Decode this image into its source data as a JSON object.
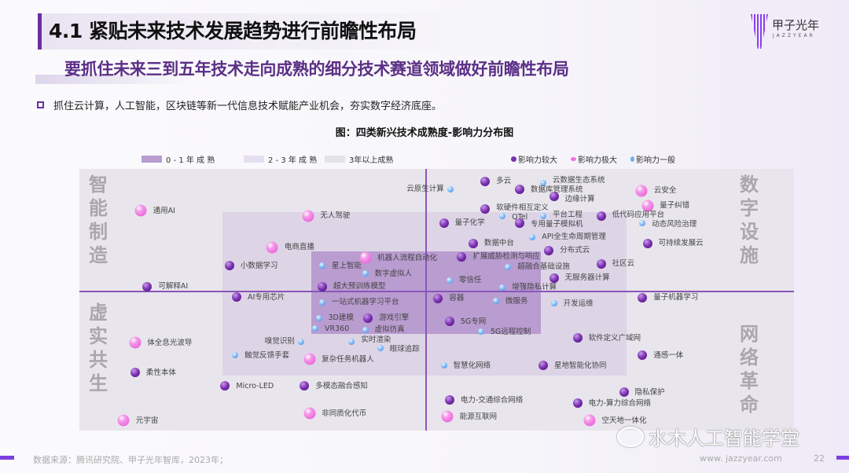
{
  "header": {
    "title": "4.1 紧贴未来技术发展趋势进行前瞻性布局",
    "subtitle": "要抓住未来三到五年技术走向成熟的细分技术赛道领域做好前瞻性布局",
    "bullet": "抓住云计算，人工智能，区块链等新一代信息技术赋能产业机会，夯实数字经济底座。",
    "logo_text": "甲子光年",
    "logo_sub": "JAZZYEAR"
  },
  "footer": {
    "source": "数据来源：腾讯研究院、甲子光年智库，2023年；",
    "url": "www. jazzyear.com",
    "page": "22",
    "watermark": "水木人工智能学堂"
  },
  "colors": {
    "accent": "#6a2fa0",
    "large": "#7a2fb0",
    "extreme": "#f070e0",
    "general": "#6fb0f5",
    "mature_0_1": "#b99cd0",
    "mature_2_3": "#ddd5e6",
    "mature_3plus": "#e8e6ec"
  },
  "chart_data": {
    "type": "scatter",
    "title": "图：四类新兴技术成熟度-影响力分布图",
    "xlim": [
      0,
      100
    ],
    "ylim": [
      0,
      100
    ],
    "legend_regions": [
      "0 - 1 年 成 熟",
      "2 - 3 年 成 熟",
      "3年以上成熟"
    ],
    "legend_impact": {
      "large": "影响力较大",
      "extreme": "影响力极大",
      "general": "影响力一般"
    },
    "quadrants": {
      "top_left": "智能制造",
      "bottom_left": "虚实共生",
      "top_right": "数字设施",
      "bottom_right": "网络革命"
    },
    "points": [
      {
        "name": "通用AI",
        "x": 8.6,
        "y": 84,
        "impact": "extreme"
      },
      {
        "name": "无人驾驶",
        "x": 32,
        "y": 82,
        "impact": "extreme"
      },
      {
        "name": "电商直播",
        "x": 27,
        "y": 70,
        "impact": "extreme"
      },
      {
        "name": "小数据学习",
        "x": 21,
        "y": 63,
        "impact": "large"
      },
      {
        "name": "可解释AI",
        "x": 9.5,
        "y": 55,
        "impact": "large"
      },
      {
        "name": "机器人流程自动化",
        "x": 40,
        "y": 66,
        "impact": "extreme"
      },
      {
        "name": "星上智能",
        "x": 34,
        "y": 63,
        "impact": "general"
      },
      {
        "name": "数字虚拟人",
        "x": 40,
        "y": 60,
        "impact": "general"
      },
      {
        "name": "超大预训练模型",
        "x": 34,
        "y": 55,
        "impact": "large"
      },
      {
        "name": "AI专用芯片",
        "x": 22,
        "y": 51,
        "impact": "large"
      },
      {
        "name": "一站式机器学习平台",
        "x": 34,
        "y": 49,
        "impact": "general"
      },
      {
        "name": "3D建模",
        "x": 33.5,
        "y": 43,
        "impact": "general"
      },
      {
        "name": "游戏引擎",
        "x": 40.4,
        "y": 43,
        "impact": "large"
      },
      {
        "name": "VR360",
        "x": 33,
        "y": 39,
        "impact": "general"
      },
      {
        "name": "虚拟仿真",
        "x": 40,
        "y": 38.5,
        "impact": "general"
      },
      {
        "name": "嗅觉识别",
        "x": 31,
        "y": 34,
        "impact": "general",
        "label_side": "left"
      },
      {
        "name": "实时渲染",
        "x": 38.1,
        "y": 34,
        "impact": "general"
      },
      {
        "name": "眼球追踪",
        "x": 42.1,
        "y": 31.5,
        "impact": "general"
      },
      {
        "name": "触觉反馈手套",
        "x": 21.8,
        "y": 28.8,
        "impact": "general"
      },
      {
        "name": "复杂任务机器人",
        "x": 32.2,
        "y": 27.3,
        "impact": "extreme"
      },
      {
        "name": "体全息光波导",
        "x": 7.8,
        "y": 33.6,
        "impact": "extreme"
      },
      {
        "name": "柔性本体",
        "x": 7.8,
        "y": 22.2,
        "impact": "large"
      },
      {
        "name": "Micro-LED",
        "x": 20.4,
        "y": 17.1,
        "impact": "large"
      },
      {
        "name": "多模态融合感知",
        "x": 31.5,
        "y": 17.1,
        "impact": "large"
      },
      {
        "name": "非同质化代币",
        "x": 32.2,
        "y": 6.6,
        "impact": "extreme"
      },
      {
        "name": "元宇宙",
        "x": 6.2,
        "y": 3.9,
        "impact": "extreme"
      },
      {
        "name": "云原生计算",
        "x": 51.9,
        "y": 92.2,
        "impact": "general",
        "label_side": "left"
      },
      {
        "name": "多云",
        "x": 56.8,
        "y": 95.2,
        "impact": "large"
      },
      {
        "name": "云数据生态系统",
        "x": 64.9,
        "y": 94.6,
        "impact": "general"
      },
      {
        "name": "数据库管理系统",
        "x": 61.6,
        "y": 92.2,
        "impact": "large"
      },
      {
        "name": "边缘计算",
        "x": 66.4,
        "y": 89.5,
        "impact": "large"
      },
      {
        "name": "云安全",
        "x": 78.7,
        "y": 91.6,
        "impact": "extreme"
      },
      {
        "name": "量子纠错",
        "x": 79.5,
        "y": 85.9,
        "impact": "extreme"
      },
      {
        "name": "软硬件相互定义",
        "x": 56.8,
        "y": 84.7,
        "impact": "large"
      },
      {
        "name": "QTel",
        "x": 59.2,
        "y": 82,
        "impact": "general"
      },
      {
        "name": "平台工程",
        "x": 64.9,
        "y": 82,
        "impact": "general"
      },
      {
        "name": "低代码应用平台",
        "x": 73,
        "y": 82,
        "impact": "large"
      },
      {
        "name": "量子化学",
        "x": 51,
        "y": 79.3,
        "impact": "large"
      },
      {
        "name": "专用量子模拟机",
        "x": 61.6,
        "y": 79.3,
        "impact": "large"
      },
      {
        "name": "动态风险治理",
        "x": 78.8,
        "y": 79.3,
        "impact": "general"
      },
      {
        "name": "API全生命周期管理",
        "x": 63.4,
        "y": 73.9,
        "impact": "general"
      },
      {
        "name": "数据中台",
        "x": 55.1,
        "y": 71.5,
        "impact": "large"
      },
      {
        "name": "可持续发展云",
        "x": 79.5,
        "y": 71.5,
        "impact": "large"
      },
      {
        "name": "分布式云",
        "x": 65.7,
        "y": 68.8,
        "impact": "large"
      },
      {
        "name": "扩展威胁检测与响应",
        "x": 53.5,
        "y": 66.4,
        "impact": "large"
      },
      {
        "name": "超融合基础设施",
        "x": 60,
        "y": 62.5,
        "impact": "general"
      },
      {
        "name": "社区云",
        "x": 73,
        "y": 63.7,
        "impact": "large"
      },
      {
        "name": "零信任",
        "x": 51.8,
        "y": 57.4,
        "impact": "general"
      },
      {
        "name": "无服务器计算",
        "x": 66.4,
        "y": 58.3,
        "impact": "large"
      },
      {
        "name": "增强隐私计算",
        "x": 59.2,
        "y": 54.7,
        "impact": "general"
      },
      {
        "name": "容器",
        "x": 50.2,
        "y": 50.5,
        "impact": "large"
      },
      {
        "name": "微服务",
        "x": 58.3,
        "y": 49.5,
        "impact": "general"
      },
      {
        "name": "开发运维",
        "x": 66.4,
        "y": 48.6,
        "impact": "general"
      },
      {
        "name": "量子机器学习",
        "x": 78.8,
        "y": 50.8,
        "impact": "large"
      },
      {
        "name": "5G专网",
        "x": 51.8,
        "y": 41.7,
        "impact": "large"
      },
      {
        "name": "5G远程控制",
        "x": 56.2,
        "y": 37.8,
        "impact": "general"
      },
      {
        "name": "软件定义广域网",
        "x": 69.7,
        "y": 35.4,
        "impact": "large"
      },
      {
        "name": "通感一体",
        "x": 78.8,
        "y": 28.8,
        "impact": "large"
      },
      {
        "name": "智慧化网络",
        "x": 51,
        "y": 24.9,
        "impact": "general"
      },
      {
        "name": "星地智能化协同",
        "x": 64.9,
        "y": 24.9,
        "impact": "large"
      },
      {
        "name": "隐私保护",
        "x": 76.2,
        "y": 14.7,
        "impact": "large"
      },
      {
        "name": "电力-交通综合网络",
        "x": 51.8,
        "y": 11.7,
        "impact": "large"
      },
      {
        "name": "电力-算力综合网络",
        "x": 69.7,
        "y": 10.5,
        "impact": "large"
      },
      {
        "name": "能源互联网",
        "x": 51.5,
        "y": 5.4,
        "impact": "extreme"
      },
      {
        "name": "空天地一体化",
        "x": 71.4,
        "y": 3.9,
        "impact": "extreme"
      }
    ]
  }
}
